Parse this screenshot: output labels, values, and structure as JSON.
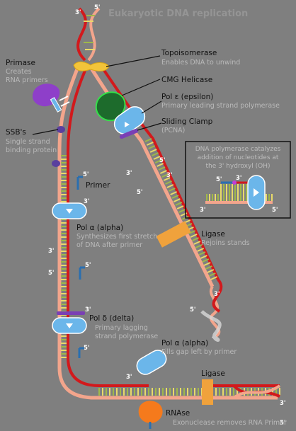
{
  "title": "Eukaryotic DNA replication",
  "labels": {
    "topoisomerase": {
      "name": "Topoisomerase",
      "desc": "Enables DNA to unwind"
    },
    "primase": {
      "name": "Primase",
      "desc1": "Creates",
      "desc2": "RNA primers"
    },
    "cmg": {
      "name": "CMG Helicase"
    },
    "pol_epsilon": {
      "name": "Pol ε (epsilon)",
      "desc": "Primary leading strand polymerase"
    },
    "ssb": {
      "name": "SSB's",
      "desc1": "Single strand",
      "desc2": "binding protein"
    },
    "clamp": {
      "name": "Sliding Clamp",
      "desc": "(PCNA)"
    },
    "primer": {
      "name": "Primer"
    },
    "pol_alpha1": {
      "name": "Pol α (alpha)",
      "desc1": "Synthesizes first stretch",
      "desc2": "of DNA after primer"
    },
    "ligase1": {
      "name": "Ligase",
      "desc": "Rejoins stands"
    },
    "pol_delta": {
      "name": "Pol δ (delta)",
      "desc1": "Primary lagging",
      "desc2": "strand polymerase"
    },
    "pol_alpha2": {
      "name": "Pol α (alpha)",
      "desc": "Fills gap left by primer"
    },
    "ligase2": {
      "name": "Ligase"
    },
    "rnase": {
      "name": "RNAse",
      "desc": "Exonuclease removes RNA Primer"
    }
  },
  "inset": {
    "line1": "DNA polymerase catalyzes",
    "line2": "addition of nucleotides at",
    "line3": "the 3' hydroxyl (OH)"
  },
  "ends": {
    "three": "3'",
    "five": "5'"
  },
  "colors": {
    "background": "#7f7f7f",
    "backbone_red": "#d2191c",
    "backbone_salmon": "#f3a58c",
    "base_green": "#9fb84a",
    "base_yellow": "#e8da6a",
    "polymerase_blue": "#6bb6ea",
    "helicase_green": "#1d6b2c",
    "topoisomerase_yellow": "#f2c43a",
    "primase_purple": "#8e3fc9",
    "clamp_purple": "#7a3fb5",
    "ligase_orange": "#f0a23c",
    "rnase_orange": "#f57a1c",
    "primer_blue": "#2a6fb0"
  }
}
